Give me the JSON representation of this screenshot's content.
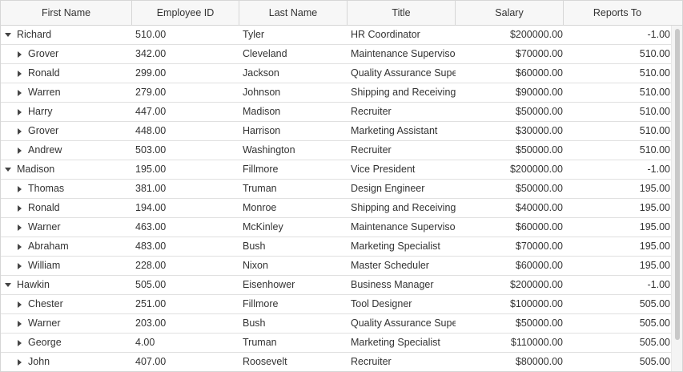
{
  "columns": [
    "First Name",
    "Employee ID",
    "Last Name",
    "Title",
    "Salary",
    "Reports To"
  ],
  "rows": [
    {
      "level": 0,
      "expanded": true,
      "first": "Richard",
      "id": "510.00",
      "last": "Tyler",
      "title": "HR Coordinator",
      "salary": "$200000.00",
      "reports": "-1.00"
    },
    {
      "level": 1,
      "expanded": false,
      "first": "Grover",
      "id": "342.00",
      "last": "Cleveland",
      "title": "Maintenance Supervisor",
      "salary": "$70000.00",
      "reports": "510.00"
    },
    {
      "level": 1,
      "expanded": false,
      "first": "Ronald",
      "id": "299.00",
      "last": "Jackson",
      "title": "Quality Assurance Supervisor",
      "salary": "$60000.00",
      "reports": "510.00"
    },
    {
      "level": 1,
      "expanded": false,
      "first": "Warren",
      "id": "279.00",
      "last": "Johnson",
      "title": "Shipping and Receiving Clerk",
      "salary": "$90000.00",
      "reports": "510.00"
    },
    {
      "level": 1,
      "expanded": false,
      "first": "Harry",
      "id": "447.00",
      "last": "Madison",
      "title": "Recruiter",
      "salary": "$50000.00",
      "reports": "510.00"
    },
    {
      "level": 1,
      "expanded": false,
      "first": "Grover",
      "id": "448.00",
      "last": "Harrison",
      "title": "Marketing Assistant",
      "salary": "$30000.00",
      "reports": "510.00"
    },
    {
      "level": 1,
      "expanded": false,
      "first": "Andrew",
      "id": "503.00",
      "last": "Washington",
      "title": "Recruiter",
      "salary": "$50000.00",
      "reports": "510.00"
    },
    {
      "level": 0,
      "expanded": true,
      "first": "Madison",
      "id": "195.00",
      "last": "Fillmore",
      "title": "Vice President",
      "salary": "$200000.00",
      "reports": "-1.00"
    },
    {
      "level": 1,
      "expanded": false,
      "first": "Thomas",
      "id": "381.00",
      "last": "Truman",
      "title": "Design Engineer",
      "salary": "$50000.00",
      "reports": "195.00"
    },
    {
      "level": 1,
      "expanded": false,
      "first": "Ronald",
      "id": "194.00",
      "last": "Monroe",
      "title": "Shipping and Receiving Clerk",
      "salary": "$40000.00",
      "reports": "195.00"
    },
    {
      "level": 1,
      "expanded": false,
      "first": "Warner",
      "id": "463.00",
      "last": "McKinley",
      "title": "Maintenance Supervisor",
      "salary": "$60000.00",
      "reports": "195.00"
    },
    {
      "level": 1,
      "expanded": false,
      "first": "Abraham",
      "id": "483.00",
      "last": "Bush",
      "title": "Marketing Specialist",
      "salary": "$70000.00",
      "reports": "195.00"
    },
    {
      "level": 1,
      "expanded": false,
      "first": "William",
      "id": "228.00",
      "last": "Nixon",
      "title": "Master Scheduler",
      "salary": "$60000.00",
      "reports": "195.00"
    },
    {
      "level": 0,
      "expanded": true,
      "first": "Hawkin",
      "id": "505.00",
      "last": "Eisenhower",
      "title": "Business Manager",
      "salary": "$200000.00",
      "reports": "-1.00"
    },
    {
      "level": 1,
      "expanded": false,
      "first": "Chester",
      "id": "251.00",
      "last": "Fillmore",
      "title": "Tool Designer",
      "salary": "$100000.00",
      "reports": "505.00"
    },
    {
      "level": 1,
      "expanded": false,
      "first": "Warner",
      "id": "203.00",
      "last": "Bush",
      "title": "Quality Assurance Supervisor",
      "salary": "$50000.00",
      "reports": "505.00"
    },
    {
      "level": 1,
      "expanded": false,
      "first": "George",
      "id": "4.00",
      "last": "Truman",
      "title": "Marketing Specialist",
      "salary": "$110000.00",
      "reports": "505.00"
    },
    {
      "level": 1,
      "expanded": false,
      "first": "John",
      "id": "407.00",
      "last": "Roosevelt",
      "title": "Recruiter",
      "salary": "$80000.00",
      "reports": "505.00"
    }
  ]
}
